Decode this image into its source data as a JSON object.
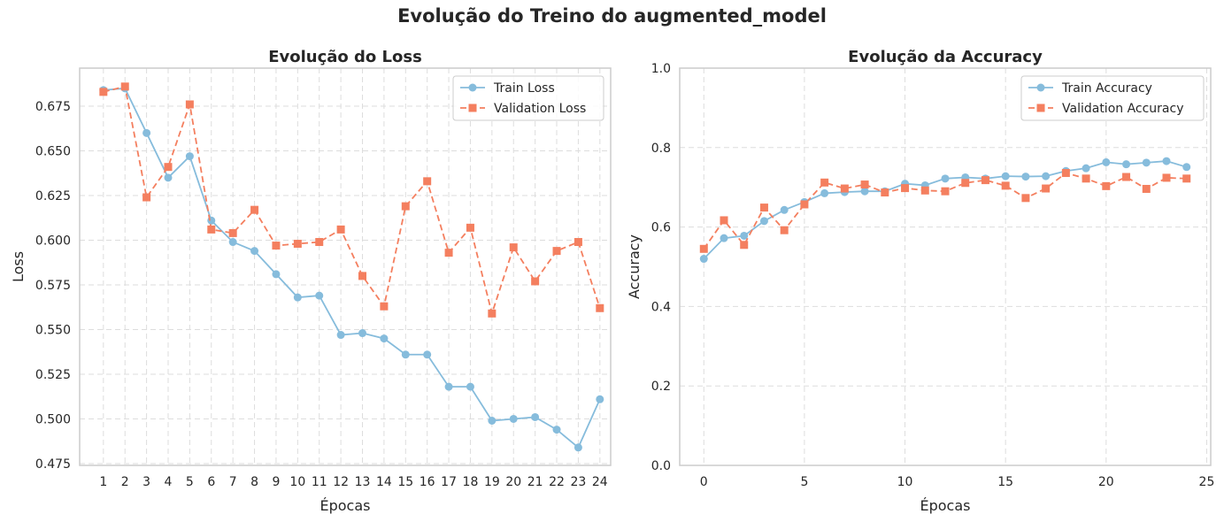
{
  "figure": {
    "title": "Evolução do Treino do augmented_model"
  },
  "colors": {
    "train": "#86bcdc",
    "validation": "#f47f5f",
    "grid": "#dddddd",
    "spine": "#cccccc"
  },
  "chart_data": [
    {
      "type": "line",
      "title": "Evolução do Loss",
      "xlabel": "Épocas",
      "ylabel": "Loss",
      "xlim": [
        -0.1,
        24.5
      ],
      "ylim": [
        0.474,
        0.6963
      ],
      "xticks": [
        1,
        2,
        3,
        4,
        5,
        6,
        7,
        8,
        9,
        10,
        11,
        12,
        13,
        14,
        15,
        16,
        17,
        18,
        19,
        20,
        21,
        22,
        23,
        24
      ],
      "xtick_labels": [
        "1",
        "2",
        "3",
        "4",
        "5",
        "6",
        "7",
        "8",
        "9",
        "10",
        "11",
        "12",
        "13",
        "14",
        "15",
        "16",
        "17",
        "18",
        "19",
        "20",
        "21",
        "22",
        "23",
        "24"
      ],
      "yticks": [
        0.475,
        0.5,
        0.525,
        0.55,
        0.575,
        0.6,
        0.625,
        0.65,
        0.675
      ],
      "ytick_labels": [
        "0.475",
        "0.500",
        "0.525",
        "0.550",
        "0.575",
        "0.600",
        "0.625",
        "0.650",
        "0.675"
      ],
      "grid": true,
      "legend": "upper right",
      "x": [
        1,
        2,
        3,
        4,
        5,
        6,
        7,
        8,
        9,
        10,
        11,
        12,
        13,
        14,
        15,
        16,
        17,
        18,
        19,
        20,
        21,
        22,
        23,
        24
      ],
      "series": [
        {
          "name": "Train Loss",
          "style": "solid-circle",
          "values": [
            0.684,
            0.685,
            0.66,
            0.635,
            0.647,
            0.611,
            0.599,
            0.594,
            0.581,
            0.568,
            0.569,
            0.547,
            0.548,
            0.545,
            0.536,
            0.536,
            0.518,
            0.518,
            0.499,
            0.5,
            0.501,
            0.494,
            0.484,
            0.511
          ]
        },
        {
          "name": "Validation Loss",
          "style": "dashed-square",
          "values": [
            0.683,
            0.686,
            0.624,
            0.641,
            0.676,
            0.606,
            0.604,
            0.617,
            0.597,
            0.598,
            0.599,
            0.606,
            0.58,
            0.563,
            0.619,
            0.633,
            0.593,
            0.607,
            0.559,
            0.596,
            0.577,
            0.594,
            0.599,
            0.562
          ]
        }
      ]
    },
    {
      "type": "line",
      "title": "Evolução da Accuracy",
      "xlabel": "Épocas",
      "ylabel": "Accuracy",
      "xlim": [
        -1.2,
        25.2
      ],
      "ylim": [
        0.0,
        1.0
      ],
      "xticks": [
        0,
        5,
        10,
        15,
        20,
        25
      ],
      "xtick_labels": [
        "0",
        "5",
        "10",
        "15",
        "20",
        "25"
      ],
      "yticks": [
        0.0,
        0.2,
        0.4,
        0.6,
        0.8,
        1.0
      ],
      "ytick_labels": [
        "0.0",
        "0.2",
        "0.4",
        "0.6",
        "0.8",
        "1.0"
      ],
      "grid": true,
      "legend": "upper right",
      "x": [
        0,
        1,
        2,
        3,
        4,
        5,
        6,
        7,
        8,
        9,
        10,
        11,
        12,
        13,
        14,
        15,
        16,
        17,
        18,
        19,
        20,
        21,
        22,
        23,
        24
      ],
      "series": [
        {
          "name": "Train Accuracy",
          "style": "solid-circle",
          "values": [
            0.52,
            0.572,
            0.578,
            0.615,
            0.643,
            0.663,
            0.685,
            0.688,
            0.69,
            0.69,
            0.709,
            0.705,
            0.722,
            0.725,
            0.722,
            0.728,
            0.727,
            0.728,
            0.741,
            0.748,
            0.763,
            0.758,
            0.762,
            0.766,
            0.751
          ]
        },
        {
          "name": "Validation Accuracy",
          "style": "dashed-square",
          "values": [
            0.545,
            0.617,
            0.555,
            0.649,
            0.592,
            0.657,
            0.712,
            0.697,
            0.707,
            0.687,
            0.698,
            0.692,
            0.69,
            0.711,
            0.718,
            0.704,
            0.673,
            0.697,
            0.736,
            0.722,
            0.703,
            0.726,
            0.696,
            0.724,
            0.722
          ]
        }
      ]
    }
  ]
}
